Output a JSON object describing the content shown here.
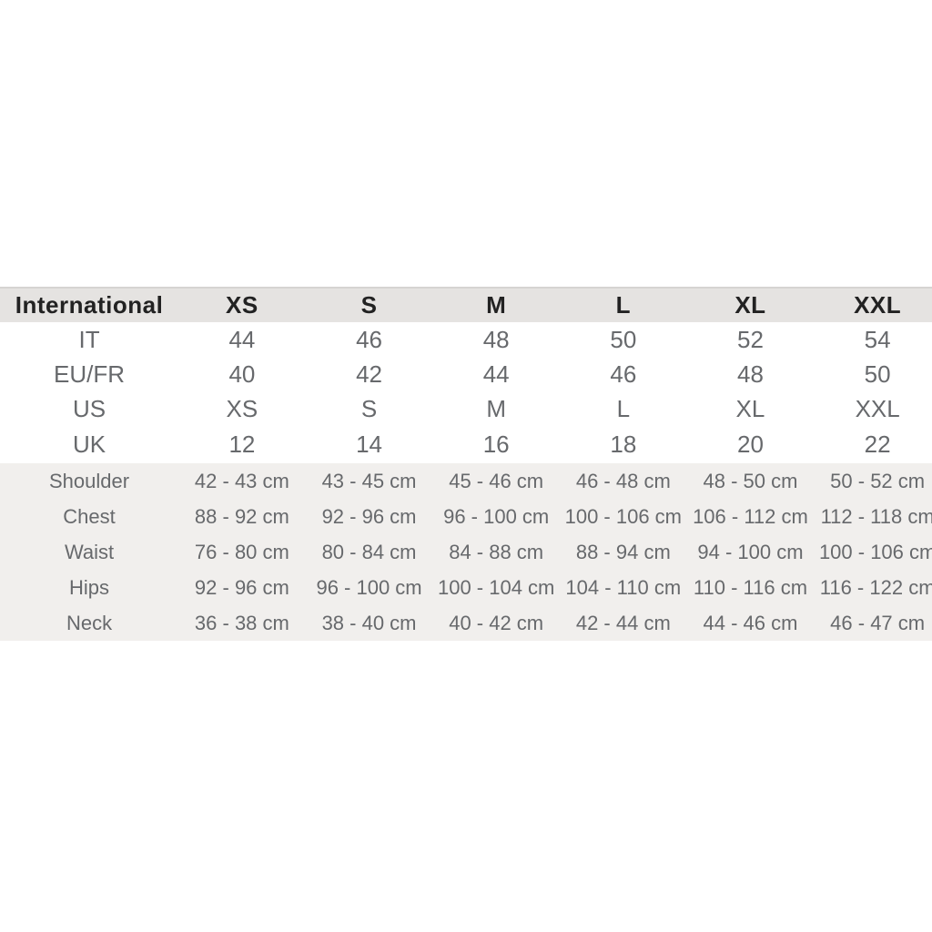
{
  "colors": {
    "header_bg": "#e5e3e1",
    "measure_bg": "#f1efed",
    "header_text": "#222222",
    "body_text": "#67696c",
    "top_border": "#d6d4d2",
    "page_bg": "#ffffff"
  },
  "chart_data": {
    "type": "table",
    "columns": [
      "International",
      "XS",
      "S",
      "M",
      "L",
      "XL",
      "XXL"
    ],
    "rows": [
      {
        "label": "IT",
        "values": [
          "44",
          "46",
          "48",
          "50",
          "52",
          "54"
        ]
      },
      {
        "label": "EU/FR",
        "values": [
          "40",
          "42",
          "44",
          "46",
          "48",
          "50"
        ]
      },
      {
        "label": "US",
        "values": [
          "XS",
          "S",
          "M",
          "L",
          "XL",
          "XXL"
        ]
      },
      {
        "label": "UK",
        "values": [
          "12",
          "14",
          "16",
          "18",
          "20",
          "22"
        ]
      },
      {
        "label": "Shoulder",
        "values": [
          "42 - 43 cm",
          "43 - 45 cm",
          "45 - 46 cm",
          "46 - 48 cm",
          "48 - 50 cm",
          "50 - 52 cm"
        ]
      },
      {
        "label": "Chest",
        "values": [
          "88 - 92 cm",
          "92 - 96 cm",
          "96 - 100 cm",
          "100 - 106 cm",
          "106 - 112 cm",
          "112 - 118 cm"
        ]
      },
      {
        "label": "Waist",
        "values": [
          "76 - 80 cm",
          "80 - 84 cm",
          "84 - 88 cm",
          "88 - 94 cm",
          "94 - 100 cm",
          "100 - 106 cm"
        ]
      },
      {
        "label": "Hips",
        "values": [
          "92 - 96 cm",
          "96 - 100 cm",
          "100 - 104 cm",
          "104 - 110 cm",
          "110 - 116 cm",
          "116 - 122 cm"
        ]
      },
      {
        "label": "Neck",
        "values": [
          "36 - 38 cm",
          "38 - 40 cm",
          "40 - 42 cm",
          "42 - 44 cm",
          "44 - 46 cm",
          "46 - 47 cm"
        ]
      }
    ]
  }
}
